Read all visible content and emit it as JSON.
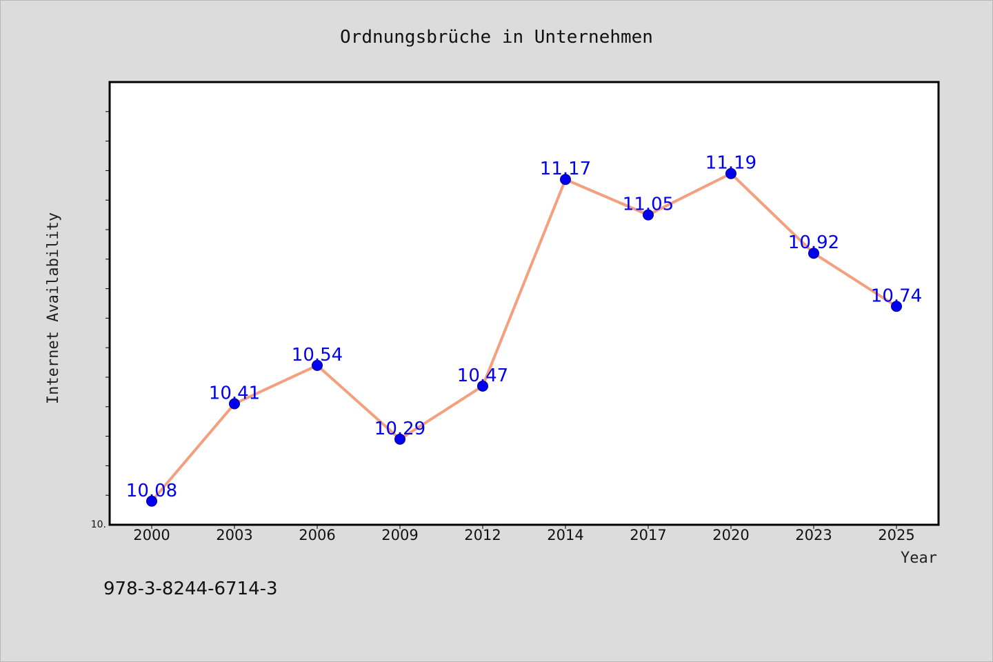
{
  "chart_data": {
    "type": "line",
    "title": "Ordnungsbrüche in Unternehmen",
    "xlabel": "Year",
    "ylabel": "Internet Availability",
    "x": [
      "2000",
      "2003",
      "2006",
      "2009",
      "2012",
      "2014",
      "2017",
      "2020",
      "2023",
      "2025"
    ],
    "series": [
      {
        "values": [
          10.08,
          10.41,
          10.54,
          10.29,
          10.47,
          11.17,
          11.05,
          11.19,
          10.92,
          10.74
        ]
      }
    ],
    "data_labels": [
      "10.08",
      "10.41",
      "10.54",
      "10.29",
      "10.47",
      "11.17",
      "11.05",
      "11.19",
      "10.92",
      "10.74"
    ],
    "ylim": [
      10.0,
      11.5
    ],
    "y_min_label": "10.",
    "grid": false,
    "line_color": "#f4a07e",
    "marker_color": "#0000ee",
    "label_color": "#0000ee",
    "background_color": "#dcdcdc",
    "plot_background_color": "#ffffff"
  },
  "footer": {
    "isbn": "978-3-8244-6714-3"
  }
}
